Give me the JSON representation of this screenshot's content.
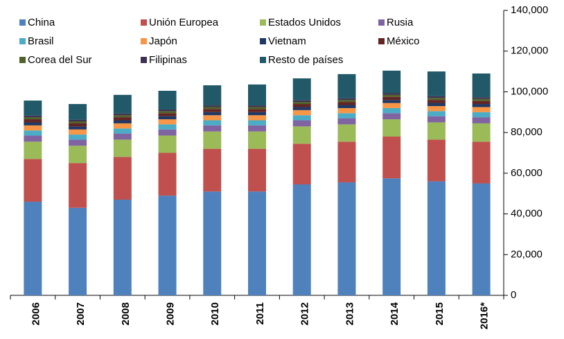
{
  "chart_data": {
    "type": "stacked_bar",
    "categories": [
      "2006",
      "2007",
      "2008",
      "2009",
      "2010",
      "2011",
      "2012",
      "2013",
      "2014",
      "2015",
      "2016*"
    ],
    "series": [
      {
        "name": "China",
        "color": "#4f81bd",
        "values": [
          46000,
          43000,
          47000,
          49000,
          51000,
          51000,
          54500,
          55500,
          57500,
          56000,
          55000
        ]
      },
      {
        "name": "Unión Europea",
        "color": "#c0504d",
        "values": [
          21000,
          22000,
          21000,
          21000,
          21000,
          21000,
          20000,
          20000,
          20500,
          20500,
          20500
        ]
      },
      {
        "name": "Estados Unidos",
        "color": "#9bbb59",
        "values": [
          8500,
          8500,
          8500,
          8500,
          8500,
          8500,
          8500,
          8500,
          8500,
          8500,
          9000
        ]
      },
      {
        "name": "Rusia",
        "color": "#8064a2",
        "values": [
          3000,
          3000,
          3000,
          3000,
          3000,
          3000,
          3000,
          3000,
          3000,
          3000,
          3000
        ]
      },
      {
        "name": "Brasil",
        "color": "#4bacc6",
        "values": [
          2500,
          2500,
          2500,
          2500,
          2500,
          2500,
          2500,
          2500,
          2500,
          2500,
          2500
        ]
      },
      {
        "name": "Japón",
        "color": "#f79646",
        "values": [
          2500,
          2500,
          2500,
          2500,
          2500,
          2500,
          2500,
          2500,
          2500,
          2500,
          2500
        ]
      },
      {
        "name": "Vietnam",
        "color": "#1f3864",
        "values": [
          1500,
          1500,
          1500,
          1500,
          1500,
          1500,
          1500,
          1500,
          1500,
          1500,
          1500
        ]
      },
      {
        "name": "México",
        "color": "#632523",
        "values": [
          1500,
          1500,
          1500,
          1500,
          1500,
          1500,
          1500,
          1500,
          1500,
          1500,
          1500
        ]
      },
      {
        "name": "Corea del Sur",
        "color": "#4f6228",
        "values": [
          1000,
          1000,
          1000,
          1000,
          1000,
          1000,
          1000,
          1000,
          1000,
          1000,
          1000
        ]
      },
      {
        "name": "Filipinas",
        "color": "#3f3151",
        "values": [
          800,
          800,
          800,
          800,
          800,
          800,
          800,
          800,
          800,
          800,
          800
        ]
      },
      {
        "name": "Resto de países",
        "color": "#215968",
        "values": [
          7400,
          7700,
          9200,
          9200,
          9900,
          10300,
          10800,
          11900,
          11100,
          12200,
          11700
        ]
      }
    ],
    "ylim": [
      0,
      140000
    ],
    "yticks": [
      0,
      {
        "value": 20000,
        "label": "20,000"
      },
      {
        "value": 40000,
        "label": "40,000"
      },
      {
        "value": 60000,
        "label": "60,000"
      },
      {
        "value": 80000,
        "label": "80,000"
      },
      {
        "value": 100000,
        "label": "100,000"
      },
      {
        "value": 120000,
        "label": "120,000"
      },
      {
        "value": 140000,
        "label": "140,000"
      }
    ],
    "grid": false,
    "legend": "top"
  }
}
